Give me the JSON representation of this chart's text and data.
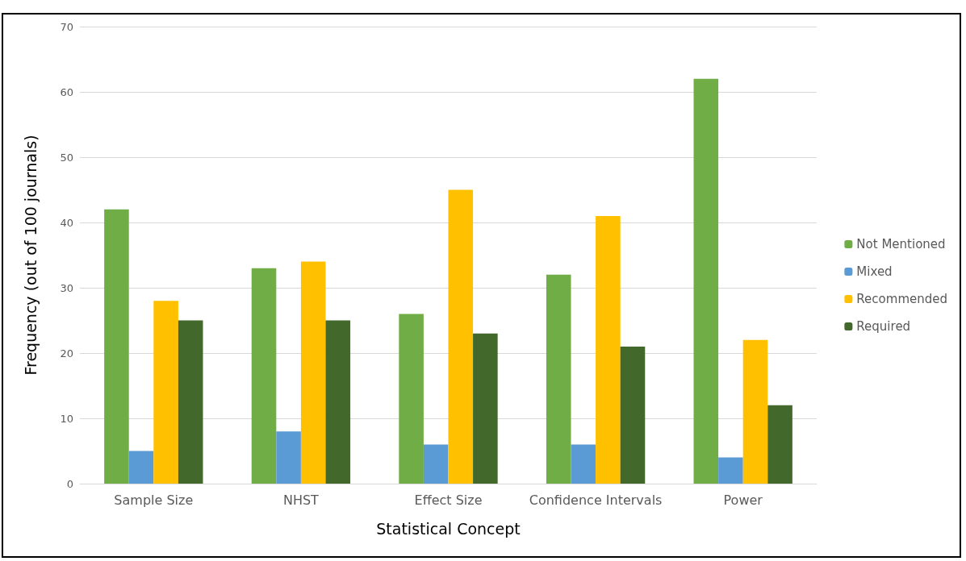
{
  "chart_data": {
    "type": "bar",
    "xlabel": "Statistical Concept",
    "ylabel": "Frequency (out of 100 journals)",
    "categories": [
      "Sample Size",
      "NHST",
      "Effect Size",
      "Confidence Intervals",
      "Power"
    ],
    "series": [
      {
        "name": "Not Mentioned",
        "color": "#70ad47",
        "values": [
          42,
          33,
          26,
          32,
          62
        ]
      },
      {
        "name": "Mixed",
        "color": "#5b9bd5",
        "values": [
          5,
          8,
          6,
          6,
          4
        ]
      },
      {
        "name": "Recommended",
        "color": "#ffc000",
        "values": [
          28,
          34,
          45,
          41,
          22
        ]
      },
      {
        "name": "Required",
        "color": "#43682b",
        "values": [
          25,
          25,
          23,
          21,
          12
        ]
      }
    ],
    "ylim": [
      0,
      70
    ],
    "yticks": [
      0,
      10,
      20,
      30,
      40,
      50,
      60,
      70
    ],
    "grid": "y",
    "legend": "right"
  }
}
